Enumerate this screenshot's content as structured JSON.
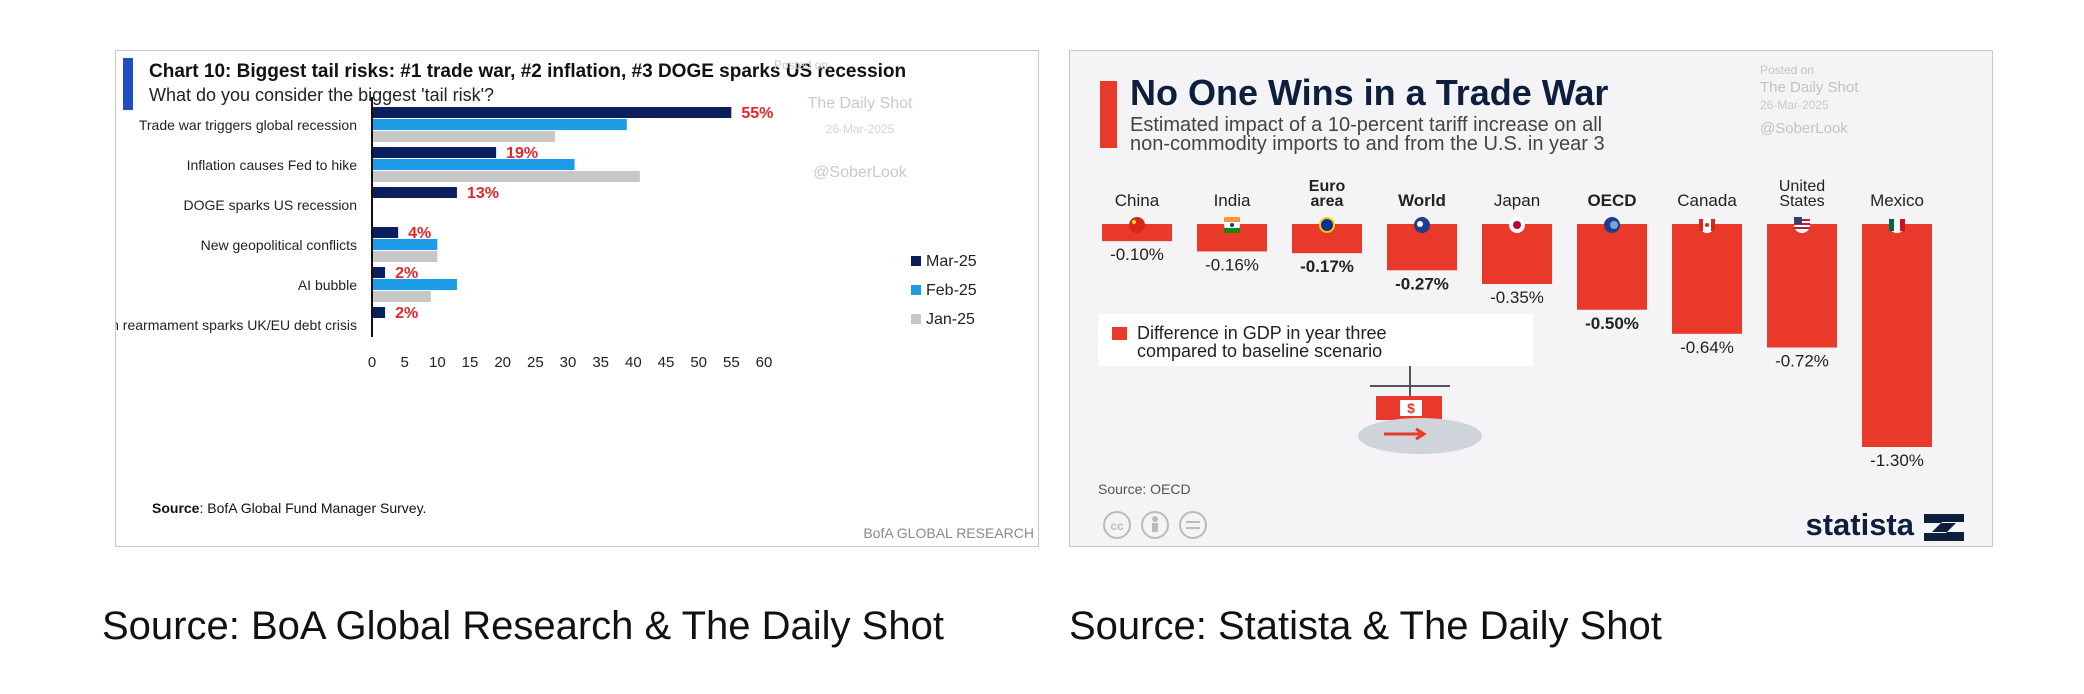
{
  "chart_data": [
    {
      "type": "bar",
      "orientation": "horizontal",
      "title": "Chart 10: Biggest tail risks: #1 trade war, #2 inflation, #3 DOGE sparks US recession",
      "subtitle": "What do you consider the biggest 'tail risk'?",
      "categories": [
        "Trade war triggers global recession",
        "Inflation causes Fed to hike",
        "DOGE sparks US recession",
        "New geopolitical conflicts",
        "AI bubble",
        "European rearmament sparks UK/EU debt crisis"
      ],
      "series": [
        {
          "name": "Mar-25",
          "color": "#0b1f5c",
          "values": [
            55,
            19,
            13,
            4,
            2,
            2
          ]
        },
        {
          "name": "Feb-25",
          "color": "#1e9be6",
          "values": [
            39,
            31,
            null,
            10,
            13,
            null
          ]
        },
        {
          "name": "Jan-25",
          "color": "#c7c7c7",
          "values": [
            28,
            41,
            null,
            10,
            9,
            null
          ]
        }
      ],
      "data_labels": [
        "55%",
        "19%",
        "13%",
        "4%",
        "2%",
        "2%"
      ],
      "label_color": "#e8232a",
      "xlim": [
        0,
        60
      ],
      "xticks": [
        "0",
        "5",
        "10",
        "15",
        "20",
        "25",
        "30",
        "35",
        "40",
        "45",
        "50",
        "55",
        "60"
      ],
      "legend_position": "right",
      "source_label": "Source",
      "source_text": ": BofA Global Fund Manager Survey.",
      "footer": "BofA GLOBAL RESEARCH",
      "watermark": {
        "line1": "Posted on",
        "line2": "The Daily Shot",
        "line3": "26-Mar-2025",
        "line4": "@SoberLook"
      },
      "accent_color": "#1f4fbf"
    },
    {
      "type": "bar",
      "orientation": "vertical",
      "title": "No One Wins in a Trade War",
      "subtitle_line1": "Estimated impact of a 10-percent tariff increase on all",
      "subtitle_line2": "non-commodity imports to and from the U.S. in year 3",
      "categories": [
        {
          "line1": "China",
          "line2": "",
          "bold": false
        },
        {
          "line1": "India",
          "line2": "",
          "bold": false
        },
        {
          "line1": "Euro",
          "line2": "area",
          "bold": true
        },
        {
          "line1": "World",
          "line2": "",
          "bold": true
        },
        {
          "line1": "Japan",
          "line2": "",
          "bold": false
        },
        {
          "line1": "OECD",
          "line2": "",
          "bold": true
        },
        {
          "line1": "Canada",
          "line2": "",
          "bold": false
        },
        {
          "line1": "United",
          "line2": "States",
          "bold": false
        },
        {
          "line1": "Mexico",
          "line2": "",
          "bold": false
        }
      ],
      "values": [
        -0.1,
        -0.16,
        -0.17,
        -0.27,
        -0.35,
        -0.5,
        -0.64,
        -0.72,
        -1.3
      ],
      "value_labels": [
        "-0.10%",
        "-0.16%",
        "-0.17%",
        "-0.27%",
        "-0.35%",
        "-0.50%",
        "-0.64%",
        "-0.72%",
        "-1.30%"
      ],
      "bar_color": "#e8392a",
      "legend_line1": "Difference in GDP in year three",
      "legend_line2": "compared to baseline scenario",
      "source": "Source: OECD",
      "brand": "statista",
      "watermark": {
        "line1": "Posted on",
        "line2": "The Daily Shot",
        "line3": "26-Mar-2025",
        "line4": "@SoberLook"
      },
      "flag_icons": [
        "china-flag-icon",
        "india-flag-icon",
        "eu-flag-icon",
        "world-icon",
        "japan-flag-icon",
        "oecd-icon",
        "canada-flag-icon",
        "usa-flag-icon",
        "mexico-flag-icon"
      ]
    }
  ],
  "captions": {
    "left": "Source: BoA Global Research & The Daily Shot",
    "right": "Source: Statista & The Daily Shot"
  }
}
